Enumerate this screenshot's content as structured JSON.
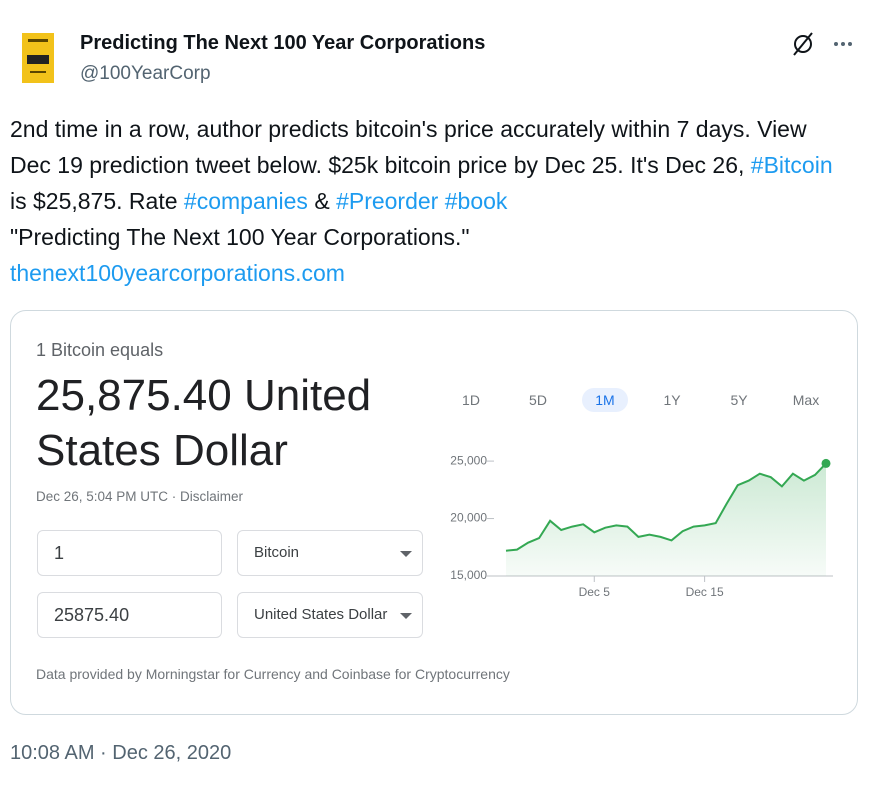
{
  "tweet": {
    "author_name": "Predicting The Next 100 Year Corporations",
    "handle": "@100YearCorp",
    "text_segments": [
      {
        "text": "2nd time in a row, author predicts bitcoin's price accurately within 7 days. View Dec 19 prediction tweet below. $25k bitcoin price by Dec 25. It's Dec 26, ",
        "link": false
      },
      {
        "text": "#Bitcoin",
        "link": true
      },
      {
        "text": " is $25,875. Rate ",
        "link": false
      },
      {
        "text": "#companies",
        "link": true
      },
      {
        "text": " & ",
        "link": false
      },
      {
        "text": "#Preorder",
        "link": true
      },
      {
        "text": " ",
        "link": false
      },
      {
        "text": "#book",
        "link": true
      },
      {
        "text": "\n\"Predicting The Next 100 Year Corporations.\"\n",
        "link": false
      },
      {
        "text": "thenext100yearcorporations.com",
        "link": true
      }
    ],
    "timestamp": "10:08 AM · Dec 26, 2020"
  },
  "card": {
    "label": "1 Bitcoin equals",
    "amount": "25,875.40 United States Dollar",
    "updated": "Dec 26, 5:04 PM UTC · Disclaimer",
    "from_amount": "1",
    "from_currency": "Bitcoin",
    "to_amount": "25875.40",
    "to_currency": "United States Dollar",
    "ranges": [
      "1D",
      "5D",
      "1M",
      "1Y",
      "5Y",
      "Max"
    ],
    "selected_range": "1M",
    "footer": "Data provided by Morningstar for Currency and Coinbase for Cryptocurrency"
  },
  "chart_data": {
    "type": "line",
    "categories": [
      null,
      null,
      null,
      null,
      null,
      null,
      null,
      null,
      "Dec 5",
      null,
      null,
      null,
      null,
      null,
      null,
      null,
      null,
      null,
      "Dec 15",
      null,
      null,
      null,
      null,
      null,
      null,
      null,
      null,
      null,
      null,
      null
    ],
    "values": [
      17200,
      17300,
      17900,
      18300,
      19800,
      19000,
      19300,
      19500,
      18800,
      19200,
      19400,
      19300,
      18400,
      18600,
      18400,
      18100,
      18900,
      19300,
      19400,
      19600,
      21300,
      22900,
      23300,
      23900,
      23600,
      22800,
      23900,
      23300,
      23800,
      24800
    ],
    "color": "#34a853",
    "ylim": [
      15000,
      26400
    ],
    "yticks": [
      {
        "value": 15000,
        "label": "15,000"
      },
      {
        "value": 20000,
        "label": "20,000"
      },
      {
        "value": 25000,
        "label": "25,000"
      }
    ]
  }
}
